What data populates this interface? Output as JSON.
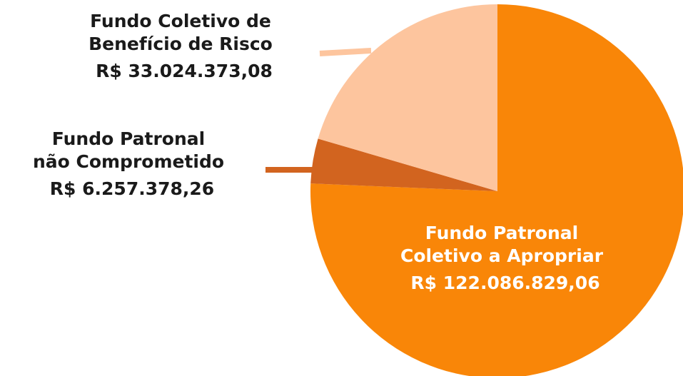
{
  "chart_data": {
    "type": "pie",
    "categories": [
      [
        "Fundo Patronal",
        "Coletivo a Apropriar"
      ],
      [
        "Fundo Patronal",
        "não Comprometido"
      ],
      [
        "Fundo Coletivo de",
        "Benefício de Risco"
      ]
    ],
    "values": [
      122086829.06,
      6257378.26,
      33024373.08
    ],
    "value_labels": [
      "R$ 122.086.829,06",
      "R$ 6.257.378,26",
      "R$ 33.024.373,08"
    ],
    "colors": [
      "#f98608",
      "#d2641f",
      "#fdc59e"
    ]
  }
}
